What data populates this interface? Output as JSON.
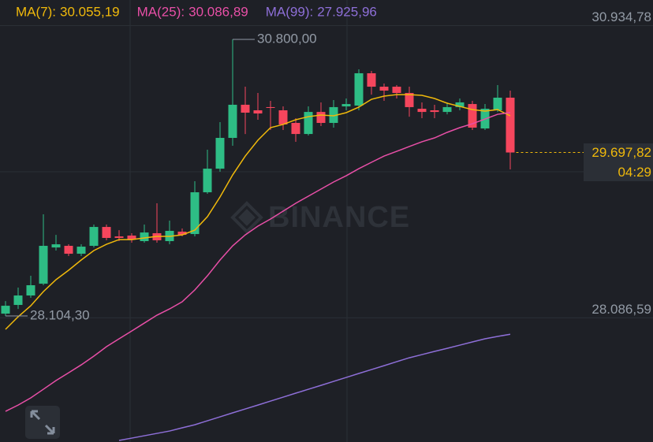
{
  "chart_data": {
    "type": "candlestick",
    "watermark": "BINANCE",
    "up_color": "#2ebd85",
    "down_color": "#f6465d",
    "ylim": [
      26876,
      31184
    ],
    "yticks": [
      {
        "value": 28086.59,
        "label": "28.086,59"
      },
      {
        "value": 30934.78,
        "label": "30.934,78"
      }
    ],
    "grid": true,
    "open": [
      28127,
      28212,
      28304,
      28419,
      28772,
      28788,
      28711,
      28788,
      28972,
      28880,
      28888,
      28834,
      28911,
      28834,
      28926,
      28903,
      29310,
      29540,
      29840,
      30163,
      30109,
      30140,
      30109,
      29986,
      29878,
      30093,
      29986,
      30147,
      30155,
      30470,
      30339,
      30339,
      30278,
      30124,
      30109,
      30093,
      30140,
      30170,
      29932,
      30109,
      30232
    ],
    "high": [
      28250,
      28381,
      28496,
      29095,
      28895,
      28803,
      28803,
      28995,
      28995,
      28941,
      28911,
      28995,
      29203,
      29034,
      28957,
      29418,
      29725,
      29994,
      30800,
      30339,
      30278,
      30201,
      30147,
      30032,
      30147,
      30186,
      30209,
      30224,
      30508,
      30493,
      30370,
      30355,
      30339,
      30186,
      30163,
      30186,
      30224,
      30201,
      30170,
      30355,
      30301
    ],
    "low": [
      28104.3,
      28173,
      28281,
      28404,
      28742,
      28688,
      28688,
      28772,
      28842,
      28834,
      28819,
      28819,
      28819,
      28803,
      28880,
      28880,
      29295,
      29510,
      29763,
      29878,
      30017,
      29917,
      29917,
      29802,
      29863,
      29955,
      29940,
      30109,
      30109,
      30262,
      30201,
      30224,
      30047,
      30032,
      30032,
      30070,
      30109,
      29917,
      29917,
      30093,
      29533
    ],
    "close": [
      28204,
      28304,
      28404,
      28788,
      28803,
      28711,
      28780,
      28972,
      28865,
      28865,
      28849,
      28918,
      28842,
      28934,
      28895,
      29310,
      29540,
      29840,
      30163,
      30086,
      30078,
      30132,
      29971,
      29878,
      30093,
      29986,
      30140,
      30170,
      30470,
      30339,
      30301,
      30278,
      30140,
      30093,
      30093,
      30140,
      30186,
      29940,
      30124,
      30232,
      29697.82
    ],
    "series": [
      {
        "name": "MA(7):",
        "color": "#f0b90b",
        "values": [
          27974,
          28097,
          28204,
          28342,
          28458,
          28550,
          28650,
          28742,
          28803,
          28849,
          28849,
          28865,
          28880,
          28880,
          28895,
          28941,
          29072,
          29264,
          29479,
          29663,
          29817,
          29940,
          29971,
          30017,
          30047,
          30063,
          30055,
          30086,
          30140,
          30216,
          30247,
          30262,
          30262,
          30255,
          30224,
          30178,
          30147,
          30116,
          30101,
          30116,
          30055.19
        ],
        "value_labels": [
          null,
          null,
          null,
          null,
          null,
          null,
          null,
          null,
          null,
          null,
          null,
          null,
          null,
          null,
          null,
          null,
          null,
          null,
          null,
          null,
          null,
          null,
          null,
          null,
          null,
          null,
          null,
          null,
          null,
          null,
          null,
          null,
          null,
          null,
          null,
          null,
          null,
          null,
          null,
          null,
          "30.055,19"
        ]
      },
      {
        "name": "MA(25):",
        "color": "#e84fa7",
        "values": [
          27175,
          27236,
          27306,
          27390,
          27475,
          27551,
          27628,
          27713,
          27805,
          27882,
          27958,
          28035,
          28112,
          28173,
          28243,
          28358,
          28496,
          28650,
          28788,
          28895,
          28980,
          29049,
          29126,
          29203,
          29272,
          29341,
          29410,
          29471,
          29540,
          29602,
          29663,
          29709,
          29756,
          29802,
          29840,
          29894,
          29940,
          29978,
          30024,
          30070,
          30086.89
        ],
        "value_labels": [
          null,
          null,
          null,
          null,
          null,
          null,
          null,
          null,
          null,
          null,
          null,
          null,
          null,
          null,
          null,
          null,
          null,
          null,
          null,
          null,
          null,
          null,
          null,
          null,
          null,
          null,
          null,
          null,
          null,
          null,
          null,
          null,
          null,
          null,
          null,
          null,
          null,
          null,
          null,
          null,
          "30.086,89"
        ]
      },
      {
        "name": "MA(99):",
        "color": "#8e6fd8",
        "values": [
          null,
          null,
          null,
          null,
          null,
          null,
          null,
          null,
          null,
          26891,
          26914,
          26937,
          26960,
          26983,
          27014,
          27044,
          27083,
          27121,
          27160,
          27198,
          27236,
          27275,
          27313,
          27352,
          27390,
          27428,
          27467,
          27505,
          27544,
          27582,
          27620,
          27659,
          27697,
          27728,
          27759,
          27789,
          27820,
          27851,
          27882,
          27905,
          27925.96
        ],
        "value_labels": [
          null,
          null,
          null,
          null,
          null,
          null,
          null,
          null,
          null,
          null,
          null,
          null,
          null,
          null,
          null,
          null,
          null,
          null,
          null,
          null,
          null,
          null,
          null,
          null,
          null,
          null,
          null,
          null,
          null,
          null,
          null,
          null,
          null,
          null,
          null,
          null,
          null,
          null,
          null,
          null,
          "27.925,96"
        ]
      }
    ],
    "annotations": [
      {
        "value": 30800,
        "label": "30.800,00"
      },
      {
        "value": 28104.3,
        "label": "28.104,30"
      }
    ],
    "last_price": {
      "value": 29697.82,
      "label": "29.697,82"
    },
    "countdown": "04:29"
  }
}
